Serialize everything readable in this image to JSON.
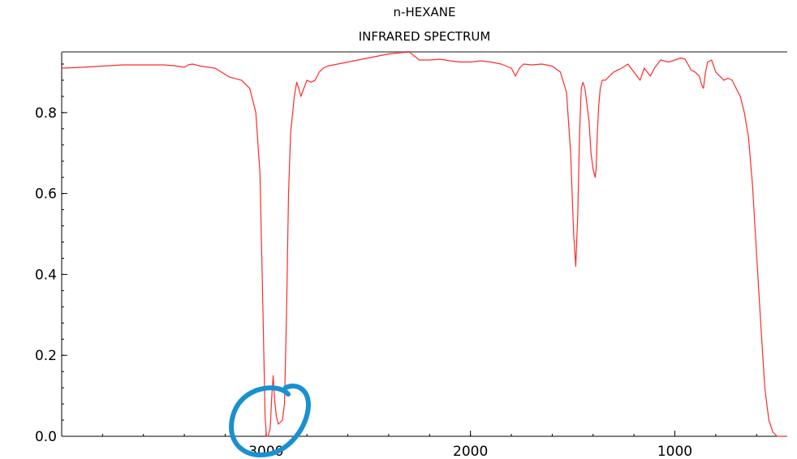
{
  "chart_data": {
    "type": "line",
    "title": "n-HEXANE",
    "subtitle": "INFRARED SPECTRUM",
    "xlabel": "",
    "ylabel": "",
    "x_reversed": true,
    "xlim": [
      4000,
      450
    ],
    "ylim": [
      0,
      0.95
    ],
    "x_ticks": [
      3000,
      2000,
      1000
    ],
    "x_tick_labels": [
      "3000",
      "2000",
      "1000"
    ],
    "y_ticks": [
      0.0,
      0.2,
      0.4,
      0.6,
      0.8
    ],
    "y_tick_labels": [
      "0.0",
      "0.2",
      "0.4",
      "0.6",
      "0.8"
    ],
    "grid": false,
    "line_color": "#ff2a2a",
    "annotation": {
      "shape": "hand-drawn circle",
      "color": "#1a90d0"
    },
    "series": [
      {
        "x": [
          4000,
          3900,
          3800,
          3700,
          3600,
          3500,
          3450,
          3400,
          3380,
          3360,
          3320,
          3250,
          3180,
          3120,
          3080,
          3050,
          3030,
          3015,
          3005,
          2998,
          2990,
          2980,
          2972,
          2965,
          2958,
          2950,
          2940,
          2930,
          2920,
          2910,
          2900,
          2890,
          2880,
          2870,
          2862,
          2855,
          2850,
          2840,
          2830,
          2800,
          2780,
          2760,
          2740,
          2720,
          2700,
          2650,
          2600,
          2500,
          2400,
          2300,
          2250,
          2200,
          2150,
          2100,
          2050,
          2000,
          1950,
          1900,
          1850,
          1800,
          1780,
          1760,
          1740,
          1700,
          1650,
          1600,
          1560,
          1530,
          1510,
          1495,
          1485,
          1475,
          1466,
          1458,
          1450,
          1440,
          1430,
          1420,
          1410,
          1400,
          1390,
          1385,
          1379,
          1372,
          1365,
          1355,
          1340,
          1320,
          1300,
          1260,
          1230,
          1200,
          1170,
          1150,
          1120,
          1100,
          1070,
          1030,
          1000,
          970,
          950,
          920,
          900,
          880,
          870,
          860,
          850,
          840,
          820,
          800,
          780,
          760,
          740,
          720,
          700,
          680,
          660,
          640,
          620,
          600,
          580,
          560,
          540,
          520,
          500,
          480,
          460,
          450
        ],
        "y": [
          0.91,
          0.912,
          0.915,
          0.918,
          0.918,
          0.918,
          0.916,
          0.912,
          0.918,
          0.92,
          0.915,
          0.91,
          0.888,
          0.88,
          0.86,
          0.8,
          0.65,
          0.3,
          0.05,
          0.0,
          0.0,
          0.02,
          0.1,
          0.15,
          0.09,
          0.05,
          0.03,
          0.035,
          0.04,
          0.08,
          0.3,
          0.6,
          0.75,
          0.8,
          0.84,
          0.86,
          0.875,
          0.86,
          0.84,
          0.88,
          0.875,
          0.88,
          0.9,
          0.91,
          0.915,
          0.92,
          0.925,
          0.935,
          0.945,
          0.95,
          0.93,
          0.93,
          0.932,
          0.928,
          0.925,
          0.925,
          0.928,
          0.925,
          0.92,
          0.91,
          0.89,
          0.91,
          0.92,
          0.918,
          0.92,
          0.915,
          0.9,
          0.85,
          0.7,
          0.5,
          0.42,
          0.55,
          0.75,
          0.86,
          0.875,
          0.86,
          0.82,
          0.78,
          0.7,
          0.66,
          0.64,
          0.66,
          0.75,
          0.82,
          0.86,
          0.88,
          0.88,
          0.89,
          0.9,
          0.91,
          0.92,
          0.9,
          0.88,
          0.91,
          0.89,
          0.91,
          0.93,
          0.925,
          0.93,
          0.935,
          0.932,
          0.905,
          0.9,
          0.89,
          0.87,
          0.86,
          0.9,
          0.925,
          0.93,
          0.9,
          0.89,
          0.88,
          0.885,
          0.88,
          0.86,
          0.84,
          0.8,
          0.74,
          0.62,
          0.45,
          0.28,
          0.12,
          0.04,
          0.01,
          0.0,
          0.0,
          0.0,
          0.0
        ]
      }
    ]
  }
}
